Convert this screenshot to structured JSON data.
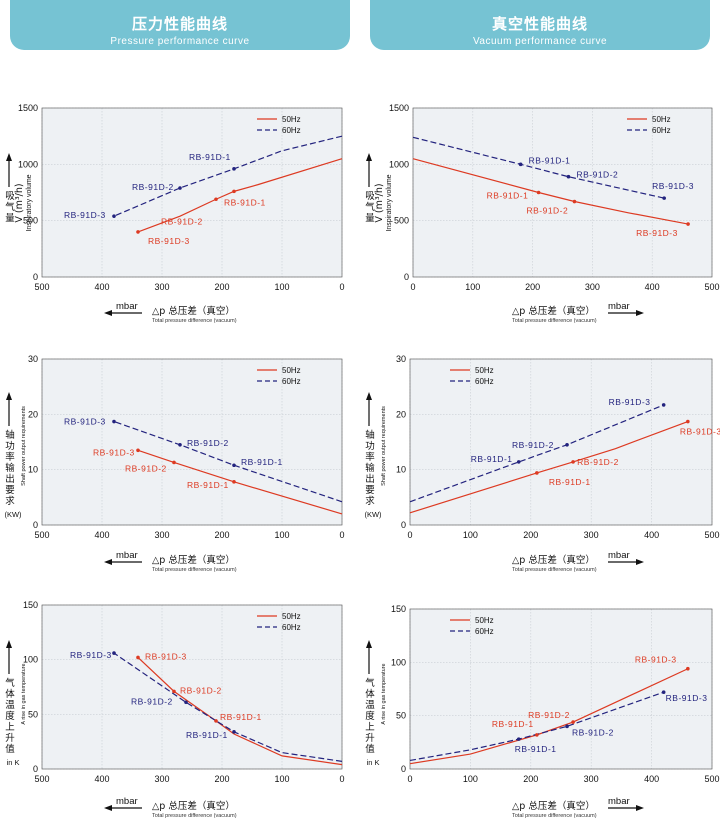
{
  "header": {
    "left_title_zh": "压力性能曲线",
    "left_title_en": "Pressure performance curve",
    "right_title_zh": "真空性能曲线",
    "right_title_en": "Vacuum performance curve"
  },
  "colors": {
    "hz50": "#dd3a22",
    "hz60": "#23237e"
  },
  "axis_text": {
    "mbar": "mbar",
    "xlabel_zh": "△p  总压差（真空）",
    "xlabel_en": "Total pressure difference (vacuum)"
  },
  "chart_data": [
    {
      "id": "p1",
      "type": "line",
      "reversed_x": true,
      "xlim": [
        500,
        0
      ],
      "ylim": [
        0,
        1500
      ],
      "xticks": [
        500,
        400,
        300,
        200,
        100,
        0
      ],
      "yticks": [
        0,
        500,
        1000,
        1500
      ],
      "ylabel_zh": [
        "吸",
        "气",
        "量"
      ],
      "ylabel_unit": "V (m³/h)",
      "ylabel_en": "Inspiratory volume",
      "legend": [
        "50Hz",
        "60Hz"
      ],
      "legend_position": "top-right",
      "series": [
        {
          "name": "50Hz",
          "style": "solid",
          "x": [
            0,
            140,
            180,
            210,
            270,
            340
          ],
          "y": [
            1050,
            820,
            760,
            690,
            540,
            400
          ]
        },
        {
          "name": "60Hz",
          "style": "dashed",
          "x": [
            0,
            100,
            180,
            270,
            380
          ],
          "y": [
            1250,
            1120,
            960,
            790,
            540
          ]
        }
      ],
      "points": [
        {
          "series": 0,
          "x": 180,
          "y": 760,
          "label": "RB-91D-1",
          "dx": -10,
          "dy": 14,
          "anchor": "start"
        },
        {
          "series": 0,
          "x": 210,
          "y": 690,
          "label": "RB-91D-2",
          "dx": -55,
          "dy": 25,
          "anchor": "start"
        },
        {
          "series": 0,
          "x": 340,
          "y": 400,
          "label": "RB-91D-3",
          "dx": 10,
          "dy": 12,
          "anchor": "start"
        },
        {
          "series": 1,
          "x": 180,
          "y": 960,
          "label": "RB-91D-1",
          "dx": -45,
          "dy": -9,
          "anchor": "start"
        },
        {
          "series": 1,
          "x": 270,
          "y": 790,
          "label": "RB-91D-2",
          "dx": -48,
          "dy": 2,
          "anchor": "start"
        },
        {
          "series": 1,
          "x": 380,
          "y": 540,
          "label": "RB-91D-3",
          "dx": -50,
          "dy": 2,
          "anchor": "start"
        }
      ]
    },
    {
      "id": "v1",
      "type": "line",
      "reversed_x": false,
      "xlim": [
        0,
        500
      ],
      "ylim": [
        0,
        1500
      ],
      "xticks": [
        0,
        100,
        200,
        300,
        400,
        500
      ],
      "yticks": [
        0,
        500,
        1000,
        1500
      ],
      "ylabel_zh": [
        "吸",
        "气",
        "量"
      ],
      "ylabel_unit": "V (m³/h)",
      "ylabel_en": "Inspiratory volume",
      "legend": [
        "50Hz",
        "60Hz"
      ],
      "legend_position": "top-right",
      "series": [
        {
          "name": "50Hz",
          "style": "solid",
          "x": [
            0,
            210,
            270,
            360,
            460
          ],
          "y": [
            1050,
            750,
            670,
            570,
            470
          ]
        },
        {
          "name": "60Hz",
          "style": "dashed",
          "x": [
            0,
            180,
            260,
            420
          ],
          "y": [
            1240,
            1000,
            890,
            700
          ]
        }
      ],
      "points": [
        {
          "series": 0,
          "x": 210,
          "y": 750,
          "label": "RB-91D-1",
          "dx": -52,
          "dy": 6,
          "anchor": "start"
        },
        {
          "series": 0,
          "x": 270,
          "y": 670,
          "label": "RB-91D-2",
          "dx": -48,
          "dy": 12,
          "anchor": "start"
        },
        {
          "series": 0,
          "x": 460,
          "y": 470,
          "label": "RB-91D-3",
          "dx": -52,
          "dy": 12,
          "anchor": "start"
        },
        {
          "series": 1,
          "x": 180,
          "y": 1000,
          "label": "RB-91D-1",
          "dx": 8,
          "dy": -1,
          "anchor": "start"
        },
        {
          "series": 1,
          "x": 260,
          "y": 890,
          "label": "RB-91D-2",
          "dx": 8,
          "dy": 1,
          "anchor": "start"
        },
        {
          "series": 1,
          "x": 420,
          "y": 700,
          "label": "RB-91D-3",
          "dx": -12,
          "dy": -9,
          "anchor": "start"
        }
      ]
    },
    {
      "id": "p2",
      "type": "line",
      "reversed_x": true,
      "xlim": [
        500,
        0
      ],
      "ylim": [
        0,
        30
      ],
      "xticks": [
        500,
        400,
        300,
        200,
        100,
        0
      ],
      "yticks": [
        0,
        10,
        20,
        30
      ],
      "ylabel_zh": [
        "轴",
        "功",
        "率",
        "输",
        "出",
        "要",
        "求"
      ],
      "ylabel_unit": "(KW)",
      "ylabel_en": "Shaft power output requirements",
      "legend": [
        "50Hz",
        "60Hz"
      ],
      "legend_position": "top-right",
      "series": [
        {
          "name": "50Hz",
          "style": "solid",
          "x": [
            0,
            180,
            280,
            340
          ],
          "y": [
            2,
            7.8,
            11.3,
            13.5
          ]
        },
        {
          "name": "60Hz",
          "style": "dashed",
          "x": [
            0,
            180,
            270,
            380
          ],
          "y": [
            4.2,
            10.8,
            14.5,
            18.7
          ]
        }
      ],
      "points": [
        {
          "series": 0,
          "x": 180,
          "y": 7.8,
          "label": "RB-91D-1",
          "dx": -47,
          "dy": 6,
          "anchor": "start"
        },
        {
          "series": 0,
          "x": 280,
          "y": 11.3,
          "label": "RB-91D-2",
          "dx": -49,
          "dy": 9,
          "anchor": "start"
        },
        {
          "series": 0,
          "x": 340,
          "y": 13.5,
          "label": "RB-91D-3",
          "dx": -45,
          "dy": 5,
          "anchor": "start"
        },
        {
          "series": 1,
          "x": 180,
          "y": 10.8,
          "label": "RB-91D-1",
          "dx": 7,
          "dy": 0,
          "anchor": "start"
        },
        {
          "series": 1,
          "x": 270,
          "y": 14.5,
          "label": "RB-91D-2",
          "dx": 7,
          "dy": 1,
          "anchor": "start"
        },
        {
          "series": 1,
          "x": 380,
          "y": 18.7,
          "label": "RB-91D-3",
          "dx": -50,
          "dy": 3,
          "anchor": "start"
        }
      ]
    },
    {
      "id": "v2",
      "type": "line",
      "reversed_x": false,
      "xlim": [
        0,
        500
      ],
      "ylim": [
        0,
        30
      ],
      "xticks": [
        0,
        100,
        200,
        300,
        400,
        500
      ],
      "yticks": [
        0,
        10,
        20,
        30
      ],
      "ylabel_zh": [
        "轴",
        "功",
        "率",
        "输",
        "出",
        "要",
        "求"
      ],
      "ylabel_unit": "(KW)",
      "ylabel_en": "Shaft power output requirements",
      "legend": [
        "50Hz",
        "60Hz"
      ],
      "legend_position": "top-left",
      "series": [
        {
          "name": "50Hz",
          "style": "solid",
          "x": [
            0,
            210,
            270,
            340,
            460
          ],
          "y": [
            2.2,
            9.4,
            11.4,
            13.8,
            18.7
          ]
        },
        {
          "name": "60Hz",
          "style": "dashed",
          "x": [
            0,
            180,
            260,
            420
          ],
          "y": [
            4.2,
            11.4,
            14.5,
            21.7
          ]
        }
      ],
      "points": [
        {
          "series": 0,
          "x": 210,
          "y": 9.4,
          "label": "RB-91D-1",
          "dx": 12,
          "dy": 12,
          "anchor": "start"
        },
        {
          "series": 0,
          "x": 270,
          "y": 11.4,
          "label": "RB-91D-2",
          "dx": 4,
          "dy": 3,
          "anchor": "start"
        },
        {
          "series": 0,
          "x": 460,
          "y": 18.7,
          "label": "RB-91D-3",
          "dx": -8,
          "dy": 13,
          "anchor": "start"
        },
        {
          "series": 1,
          "x": 180,
          "y": 11.4,
          "label": "RB-91D-1",
          "dx": -48,
          "dy": 0,
          "anchor": "start"
        },
        {
          "series": 1,
          "x": 260,
          "y": 14.5,
          "label": "RB-91D-2",
          "dx": -55,
          "dy": 3,
          "anchor": "start"
        },
        {
          "series": 1,
          "x": 420,
          "y": 21.7,
          "label": "RB-91D-3",
          "dx": -55,
          "dy": 0,
          "anchor": "start"
        }
      ]
    },
    {
      "id": "p3",
      "type": "line",
      "reversed_x": true,
      "xlim": [
        500,
        0
      ],
      "ylim": [
        0,
        150
      ],
      "xticks": [
        500,
        400,
        300,
        200,
        100,
        0
      ],
      "yticks": [
        0,
        50,
        100,
        150
      ],
      "ylabel_zh": [
        "气",
        "体",
        "温",
        "度",
        "上",
        "升",
        "值"
      ],
      "ylabel_unit": "in K",
      "ylabel_en": "A rise in gas temperature",
      "legend": [
        "50Hz",
        "60Hz"
      ],
      "legend_position": "top-right",
      "series": [
        {
          "name": "50Hz",
          "style": "solid",
          "x": [
            0,
            100,
            180,
            210,
            280,
            340
          ],
          "y": [
            4,
            12,
            32,
            44,
            71,
            102
          ]
        },
        {
          "name": "60Hz",
          "style": "dashed",
          "x": [
            0,
            100,
            180,
            260,
            380
          ],
          "y": [
            7,
            15,
            34,
            61,
            106
          ]
        }
      ],
      "points": [
        {
          "series": 0,
          "x": 210,
          "y": 44,
          "label": "RB-91D-1",
          "dx": 4,
          "dy": -1,
          "anchor": "start"
        },
        {
          "series": 0,
          "x": 280,
          "y": 71,
          "label": "RB-91D-2",
          "dx": 6,
          "dy": 2,
          "anchor": "start"
        },
        {
          "series": 0,
          "x": 340,
          "y": 102,
          "label": "RB-91D-3",
          "dx": 7,
          "dy": 2,
          "anchor": "start"
        },
        {
          "series": 1,
          "x": 180,
          "y": 34,
          "label": "RB-91D-1",
          "dx": -48,
          "dy": 6,
          "anchor": "start"
        },
        {
          "series": 1,
          "x": 260,
          "y": 61,
          "label": "RB-91D-2",
          "dx": -55,
          "dy": 2,
          "anchor": "start"
        },
        {
          "series": 1,
          "x": 380,
          "y": 106,
          "label": "RB-91D-3",
          "dx": -44,
          "dy": 5,
          "anchor": "start"
        }
      ]
    },
    {
      "id": "v3",
      "type": "line",
      "reversed_x": false,
      "xlim": [
        0,
        500
      ],
      "ylim": [
        0,
        150
      ],
      "xticks": [
        0,
        100,
        200,
        300,
        400,
        500
      ],
      "yticks": [
        0,
        50,
        100,
        150
      ],
      "ylabel_zh": [
        "气",
        "体",
        "温",
        "度",
        "上",
        "升",
        "值"
      ],
      "ylabel_unit": "in K",
      "ylabel_en": "A rise in gas temperature",
      "legend": [
        "50Hz",
        "60Hz"
      ],
      "legend_position": "top-left",
      "series": [
        {
          "name": "50Hz",
          "style": "solid",
          "x": [
            0,
            100,
            210,
            270,
            460
          ],
          "y": [
            5,
            14,
            32,
            44,
            94
          ]
        },
        {
          "name": "60Hz",
          "style": "dashed",
          "x": [
            0,
            100,
            180,
            260,
            420
          ],
          "y": [
            8,
            18,
            28,
            40,
            72
          ]
        }
      ],
      "points": [
        {
          "series": 0,
          "x": 210,
          "y": 32,
          "label": "RB-91D-1",
          "dx": -45,
          "dy": -8,
          "anchor": "start"
        },
        {
          "series": 0,
          "x": 270,
          "y": 44,
          "label": "RB-91D-2",
          "dx": -45,
          "dy": -4,
          "anchor": "start"
        },
        {
          "series": 0,
          "x": 460,
          "y": 94,
          "label": "RB-91D-3",
          "dx": -53,
          "dy": -6,
          "anchor": "start"
        },
        {
          "series": 1,
          "x": 180,
          "y": 28,
          "label": "RB-91D-1",
          "dx": -4,
          "dy": 13,
          "anchor": "start"
        },
        {
          "series": 1,
          "x": 260,
          "y": 40,
          "label": "RB-91D-2",
          "dx": 5,
          "dy": 9,
          "anchor": "start"
        },
        {
          "series": 1,
          "x": 420,
          "y": 72,
          "label": "RB-91D-3",
          "dx": 2,
          "dy": 9,
          "anchor": "start"
        }
      ]
    }
  ]
}
